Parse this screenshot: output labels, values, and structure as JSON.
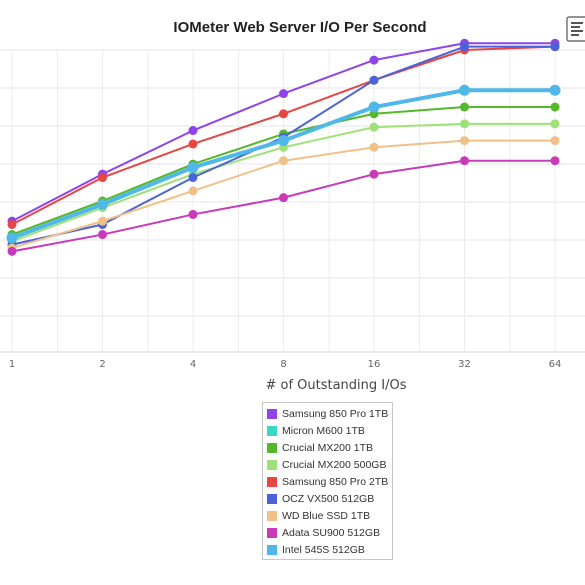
{
  "chart_data": {
    "type": "line",
    "title": "IOMeter Web Server I/O Per Second",
    "xlabel": "# of Outstanding I/Os",
    "ylabel": "",
    "x": [
      "1",
      "2",
      "4",
      "8",
      "16",
      "32",
      "64"
    ],
    "grid": true,
    "legend_position": "bottom-center",
    "ylim": [
      0,
      9.0
    ],
    "series": [
      {
        "name": "Samsung 850 Pro 1TB",
        "color": "#8e44e8",
        "values": [
          3.9,
          5.3,
          6.6,
          7.7,
          8.7,
          9.2,
          9.2
        ]
      },
      {
        "name": "Micron M600 1TB",
        "color": "#3ad6c8",
        "values": [
          3.4,
          4.4,
          5.5,
          6.3,
          7.3,
          7.8,
          7.8
        ]
      },
      {
        "name": "Crucial MX200 1TB",
        "color": "#55b82a",
        "values": [
          3.5,
          4.5,
          5.6,
          6.5,
          7.1,
          7.3,
          7.3
        ]
      },
      {
        "name": "Crucial MX200 500GB",
        "color": "#9ee07a",
        "values": [
          3.3,
          4.3,
          5.3,
          6.1,
          6.7,
          6.8,
          6.8
        ]
      },
      {
        "name": "Samsung 850 Pro 2TB",
        "color": "#e84545",
        "values": [
          3.8,
          5.2,
          6.2,
          7.1,
          8.1,
          9.0,
          9.1
        ]
      },
      {
        "name": "OCZ VX500 512GB",
        "color": "#4a63d8",
        "values": [
          3.2,
          3.8,
          5.2,
          6.4,
          8.1,
          9.1,
          9.1
        ]
      },
      {
        "name": "WD Blue SSD 1TB",
        "color": "#f0c088",
        "values": [
          3.1,
          3.9,
          4.8,
          5.7,
          6.1,
          6.3,
          6.3
        ]
      },
      {
        "name": "Adata SU900 512GB",
        "color": "#c83ab8",
        "values": [
          3.0,
          3.5,
          4.1,
          4.6,
          5.3,
          5.7,
          5.7
        ]
      },
      {
        "name": "Intel 545S 512GB",
        "color": "#4fb8e8",
        "values": [
          3.4,
          4.4,
          5.5,
          6.3,
          7.3,
          7.8,
          7.8
        ]
      }
    ]
  }
}
